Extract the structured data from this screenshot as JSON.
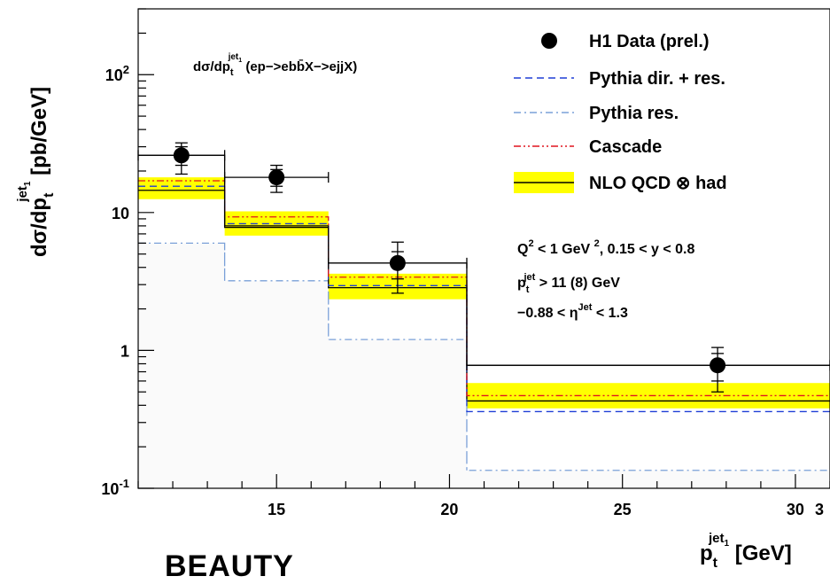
{
  "chart_data": {
    "type": "histogram",
    "title": "dσ/dp_t^{jet_1} (ep->ebb̄X->ejjX)",
    "xlabel": "p_t^{jet_1} [GeV]",
    "ylabel": "dσ/dp_t^{jet_1} [pb/GeV]",
    "xlim": [
      11,
      31
    ],
    "ylim": [
      0.1,
      300
    ],
    "yscale": "log",
    "bin_edges": [
      11,
      13.5,
      16.5,
      20.5,
      31
    ],
    "x_ticks": [
      "15",
      "20",
      "25",
      "30",
      "3"
    ],
    "y_ticks": [
      "10^{-1}",
      "1",
      "10",
      "10^{2}"
    ],
    "series": [
      {
        "name": "H1 Data (prel.)",
        "style": "markers",
        "x": [
          12.25,
          15.0,
          18.5,
          27.75
        ],
        "y": [
          26,
          18,
          4.3,
          0.78
        ],
        "yerr_low": [
          19,
          14,
          2.6,
          0.5
        ],
        "yerr_high": [
          32,
          22,
          6.1,
          1.05
        ],
        "stat_low": [
          22,
          15.5,
          3.3,
          0.6
        ],
        "stat_high": [
          30,
          20.5,
          5.2,
          0.95
        ]
      },
      {
        "name": "Pythia dir. + res.",
        "style": "dashed",
        "color": "#1f3fd6",
        "values": [
          15.5,
          8.3,
          2.95,
          0.36
        ]
      },
      {
        "name": "Pythia res.",
        "style": "dashdot",
        "color": "#7aa0d8",
        "values": [
          6.0,
          3.2,
          1.2,
          0.135
        ]
      },
      {
        "name": "Cascade",
        "style": "dashdotdot",
        "color": "#e0141e",
        "values": [
          17,
          9.3,
          3.4,
          0.47
        ]
      },
      {
        "name": "NLO QCD ⊗ had",
        "style": "solid",
        "color": "#000000",
        "values": [
          14.5,
          7.8,
          2.85,
          0.43
        ],
        "band_low": [
          12.5,
          6.8,
          2.35,
          0.38
        ],
        "band_high": [
          18,
          10.2,
          3.6,
          0.58
        ]
      },
      {
        "name": "",
        "style": "solid",
        "color": "#000000",
        "values": [
          26,
          8.0,
          4.3,
          0.78
        ]
      }
    ],
    "annotations": [
      "Q^{2} < 1 GeV^{2}, 0.15 < y < 0.8",
      "p_t^{jet} > 11 (8) GeV",
      "-0.88 < η^{Jet} < 1.3"
    ],
    "legend_position": "top-right",
    "colors": {
      "band": "#ffff00",
      "fill": "#fafafa"
    }
  },
  "labels": {
    "title_main": "dσ/dp",
    "title_sub": "t",
    "title_sup": "jet",
    "title_sup2": "1",
    "title_rest": " (ep−>ebb̄X−>ejjX)",
    "y_main": "dσ/dp",
    "y_sub": "t",
    "y_sup": "jet",
    "y_sup2": "1",
    "y_rest": " [pb/GeV]",
    "x_main": "p",
    "x_sub": "t",
    "x_sup": "jet",
    "x_sup2": "1",
    "x_rest": " [GeV]",
    "ann1a": "Q",
    "ann1b": "2",
    "ann1c": " < 1 GeV ",
    "ann1d": "2",
    "ann1e": ", 0.15 < y < 0.8",
    "ann2a": "p",
    "ann2b": "t",
    "ann2c": "jet",
    "ann2d": " > 11 (8) GeV",
    "ann3a": "−0.88 < η",
    "ann3b": "Jet",
    "ann3c": " < 1.3",
    "legend": [
      "H1 Data (prel.)",
      "Pythia dir. + res.",
      "Pythia res.",
      "Cascade",
      "NLO QCD  ⊗ had"
    ],
    "beauty": "BEAUTY"
  }
}
